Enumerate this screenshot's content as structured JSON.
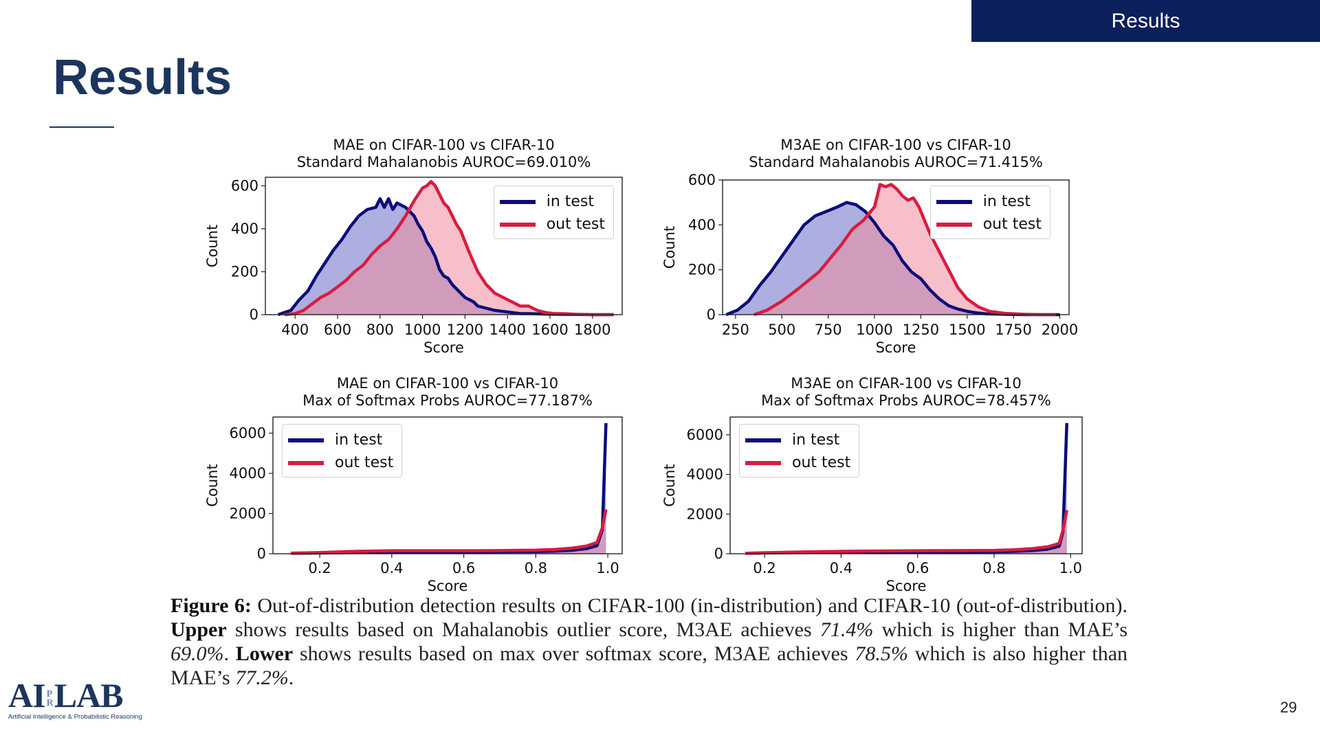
{
  "header": {
    "section_tab": "Results",
    "title": "Results"
  },
  "colors": {
    "in_test": "#0b0c7a",
    "in_test_fill": "#6a6ec6",
    "out_test": "#d81c3f",
    "out_test_fill": "#ee8a9e",
    "header_bg": "#0b1f5c",
    "title": "#1c355e"
  },
  "chart_data": [
    {
      "type": "area",
      "title": [
        "MAE on CIFAR-100 vs CIFAR-10",
        "Standard Mahalanobis AUROC=69.010%"
      ],
      "xlabel": "Score",
      "ylabel": "Count",
      "xlim": [
        260,
        1940
      ],
      "ylim": [
        0,
        640
      ],
      "xticks": [
        400,
        600,
        800,
        1000,
        1200,
        1400,
        1600,
        1800
      ],
      "xtick_labels": [
        "400",
        "600",
        "800",
        "1000",
        "1200",
        "1400",
        "1600",
        "1800"
      ],
      "yticks": [
        0,
        200,
        400,
        600
      ],
      "ytick_labels": [
        "0",
        "200",
        "400",
        "600"
      ],
      "legend": "top-right",
      "series": [
        {
          "name": "in test",
          "x": [
            320,
            380,
            420,
            460,
            500,
            540,
            580,
            620,
            660,
            700,
            740,
            780,
            800,
            820,
            840,
            860,
            880,
            900,
            920,
            940,
            960,
            980,
            1000,
            1020,
            1040,
            1060,
            1080,
            1100,
            1120,
            1140,
            1160,
            1180,
            1200,
            1220,
            1240,
            1260,
            1300,
            1340,
            1380,
            1420,
            1460,
            1500,
            1560,
            1620,
            1700,
            1800,
            1900
          ],
          "y": [
            0,
            20,
            70,
            110,
            180,
            240,
            300,
            350,
            410,
            460,
            490,
            500,
            540,
            500,
            540,
            490,
            520,
            510,
            500,
            480,
            460,
            420,
            390,
            340,
            310,
            270,
            210,
            180,
            170,
            140,
            120,
            100,
            80,
            70,
            60,
            40,
            30,
            20,
            15,
            10,
            5,
            5,
            3,
            2,
            1,
            0,
            0
          ]
        },
        {
          "name": "out test",
          "x": [
            350,
            400,
            440,
            480,
            520,
            560,
            600,
            640,
            680,
            720,
            760,
            800,
            840,
            880,
            920,
            960,
            1000,
            1020,
            1040,
            1060,
            1080,
            1100,
            1120,
            1140,
            1160,
            1180,
            1200,
            1220,
            1260,
            1300,
            1340,
            1380,
            1420,
            1460,
            1500,
            1540,
            1580,
            1620,
            1660,
            1720,
            1800,
            1900
          ],
          "y": [
            0,
            5,
            20,
            50,
            80,
            100,
            130,
            160,
            200,
            230,
            280,
            320,
            350,
            400,
            460,
            530,
            590,
            600,
            620,
            600,
            560,
            520,
            500,
            460,
            420,
            390,
            340,
            290,
            200,
            140,
            100,
            80,
            60,
            40,
            40,
            20,
            10,
            5,
            5,
            2,
            0,
            0
          ]
        }
      ]
    },
    {
      "type": "area",
      "title": [
        "M3AE on CIFAR-100 vs CIFAR-10",
        "Standard Mahalanobis AUROC=71.415%"
      ],
      "xlabel": "Score",
      "ylabel": "Count",
      "xlim": [
        180,
        2050
      ],
      "ylim": [
        0,
        600
      ],
      "xticks": [
        250,
        500,
        750,
        1000,
        1250,
        1500,
        1750,
        2000
      ],
      "xtick_labels": [
        "250",
        "500",
        "750",
        "1000",
        "1250",
        "1500",
        "1750",
        "2000"
      ],
      "yticks": [
        0,
        200,
        400,
        600
      ],
      "ytick_labels": [
        "0",
        "200",
        "400",
        "600"
      ],
      "legend": "top-right",
      "series": [
        {
          "name": "in test",
          "x": [
            200,
            260,
            320,
            380,
            440,
            500,
            560,
            620,
            680,
            740,
            800,
            850,
            900,
            950,
            1000,
            1050,
            1100,
            1150,
            1200,
            1250,
            1300,
            1350,
            1400,
            1450,
            1500,
            1550,
            1600,
            1700,
            1800,
            1900,
            2000
          ],
          "y": [
            0,
            20,
            60,
            130,
            190,
            260,
            330,
            400,
            440,
            460,
            480,
            500,
            490,
            460,
            410,
            350,
            310,
            240,
            190,
            160,
            110,
            70,
            40,
            25,
            15,
            8,
            4,
            2,
            0,
            0,
            0
          ]
        },
        {
          "name": "out test",
          "x": [
            350,
            420,
            500,
            580,
            640,
            700,
            760,
            820,
            880,
            940,
            1000,
            1030,
            1060,
            1090,
            1120,
            1150,
            1180,
            1210,
            1240,
            1270,
            1300,
            1350,
            1400,
            1450,
            1500,
            1560,
            1620,
            1700,
            1800,
            1900,
            1980
          ],
          "y": [
            0,
            20,
            60,
            110,
            150,
            190,
            250,
            310,
            380,
            420,
            480,
            580,
            570,
            580,
            560,
            530,
            510,
            520,
            480,
            420,
            360,
            280,
            200,
            120,
            70,
            35,
            15,
            6,
            2,
            0,
            0
          ]
        }
      ]
    },
    {
      "type": "area",
      "title": [
        "MAE on CIFAR-100 vs CIFAR-10",
        "Max of Softmax Probs AUROC=77.187%"
      ],
      "xlabel": "Score",
      "ylabel": "Count",
      "xlim": [
        0.07,
        1.04
      ],
      "ylim": [
        0,
        6800
      ],
      "xticks": [
        0.2,
        0.4,
        0.6,
        0.8,
        1.0
      ],
      "xtick_labels": [
        "0.2",
        "0.4",
        "0.6",
        "0.8",
        "1.0"
      ],
      "yticks": [
        0,
        2000,
        4000,
        6000
      ],
      "ytick_labels": [
        "0",
        "2000",
        "4000",
        "6000"
      ],
      "legend": "top-left",
      "series": [
        {
          "name": "in test",
          "x": [
            0.12,
            0.2,
            0.3,
            0.4,
            0.5,
            0.6,
            0.7,
            0.8,
            0.85,
            0.9,
            0.94,
            0.97,
            0.985,
            0.995
          ],
          "y": [
            20,
            40,
            60,
            80,
            90,
            90,
            100,
            110,
            130,
            170,
            250,
            400,
            1200,
            6500
          ]
        },
        {
          "name": "out test",
          "x": [
            0.12,
            0.2,
            0.3,
            0.4,
            0.5,
            0.6,
            0.7,
            0.8,
            0.85,
            0.9,
            0.94,
            0.97,
            0.985,
            0.995
          ],
          "y": [
            30,
            60,
            120,
            150,
            150,
            150,
            160,
            180,
            210,
            280,
            380,
            560,
            1300,
            2200
          ]
        }
      ]
    },
    {
      "type": "area",
      "title": [
        "M3AE on CIFAR-100 vs CIFAR-10",
        "Max of Softmax Probs AUROC=78.457%"
      ],
      "xlabel": "Score",
      "ylabel": "Count",
      "xlim": [
        0.11,
        1.03
      ],
      "ylim": [
        0,
        6900
      ],
      "xticks": [
        0.2,
        0.4,
        0.6,
        0.8,
        1.0
      ],
      "xtick_labels": [
        "0.2",
        "0.4",
        "0.6",
        "0.8",
        "1.0"
      ],
      "yticks": [
        0,
        2000,
        4000,
        6000
      ],
      "ytick_labels": [
        "0",
        "2000",
        "4000",
        "6000"
      ],
      "legend": "top-left",
      "series": [
        {
          "name": "in test",
          "x": [
            0.15,
            0.2,
            0.3,
            0.4,
            0.5,
            0.6,
            0.7,
            0.8,
            0.85,
            0.9,
            0.94,
            0.97,
            0.98,
            0.99
          ],
          "y": [
            20,
            40,
            60,
            80,
            90,
            90,
            90,
            100,
            120,
            160,
            230,
            380,
            1100,
            6600
          ]
        },
        {
          "name": "out test",
          "x": [
            0.15,
            0.2,
            0.3,
            0.4,
            0.5,
            0.6,
            0.7,
            0.8,
            0.85,
            0.9,
            0.94,
            0.97,
            0.98,
            0.99
          ],
          "y": [
            20,
            50,
            90,
            120,
            140,
            150,
            160,
            170,
            200,
            260,
            350,
            520,
            1200,
            2200
          ]
        }
      ]
    }
  ],
  "caption": {
    "label": "Figure 6:",
    "part1": " Out-of-distribution detection results on CIFAR-100 (in-distribution) and CIFAR-10 (out-of-distribution). ",
    "upper": "Upper",
    "part2": " shows results based on Mahalanobis outlier score, M3AE achieves ",
    "m3ae_upper": "71.4%",
    "part3": " which is higher than MAE’s ",
    "mae_upper": "69.0%",
    "part4": ". ",
    "lower": "Lower",
    "part5": " shows results based on max over softmax score, M3AE achieves ",
    "m3ae_lower": "78.5%",
    "part6": " which is also higher than MAE’s ",
    "mae_lower": "77.2%",
    "part7": "."
  },
  "logo": {
    "left": "AI",
    "pr_top": "P",
    "pr_bottom": "R",
    "right": "LAB",
    "subtitle": "Artificial Intelligence & Probabilistic Reasoning"
  },
  "page_number": "29"
}
